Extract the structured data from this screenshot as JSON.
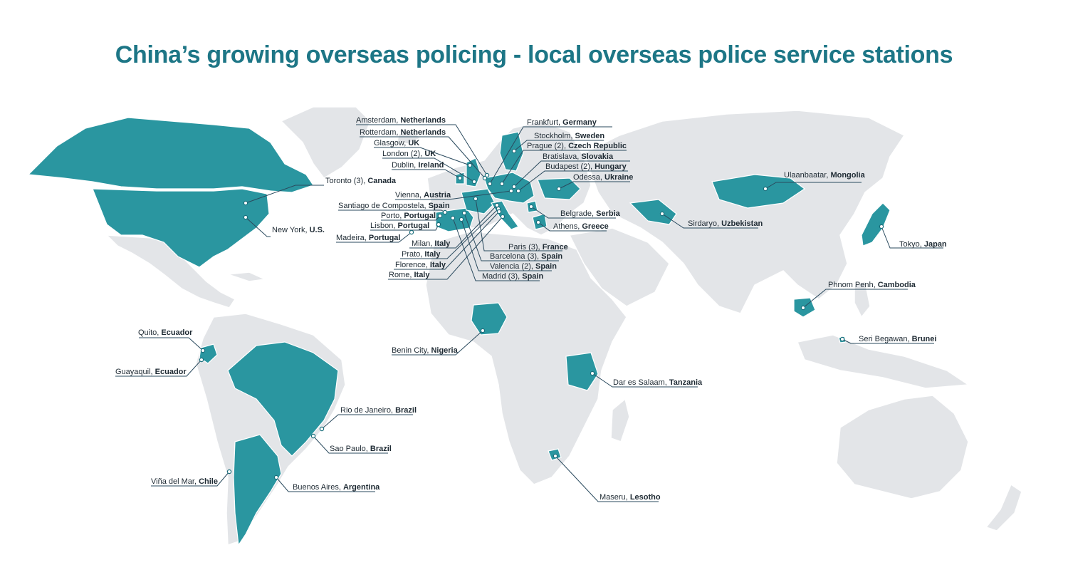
{
  "title": "China’s growing overseas policing - local overseas police service stations",
  "colors": {
    "title": "#1d7686",
    "highlight": "#2a96a0",
    "land": "#e3e5e8",
    "leader": "#2a4a5e"
  },
  "stations": [
    {
      "city": "Amsterdam,",
      "country": "Netherlands"
    },
    {
      "city": "Rotterdam,",
      "country": "Netherlands"
    },
    {
      "city": "Glasgow,",
      "country": "UK"
    },
    {
      "city": "London (2),",
      "country": "UK"
    },
    {
      "city": "Dublin,",
      "country": "Ireland"
    },
    {
      "city": "Toronto (3),",
      "country": "Canada"
    },
    {
      "city": "Vienna,",
      "country": "Austria"
    },
    {
      "city": "Santiago de Compostela,",
      "country": "Spain"
    },
    {
      "city": "Porto,",
      "country": "Portugal"
    },
    {
      "city": "Lisbon,",
      "country": "Portugal"
    },
    {
      "city": "Madeira,",
      "country": "Portugal"
    },
    {
      "city": "New York,",
      "country": "U.S."
    },
    {
      "city": "Milan,",
      "country": "Italy"
    },
    {
      "city": "Prato,",
      "country": "Italy"
    },
    {
      "city": "Florence,",
      "country": "Italy"
    },
    {
      "city": "Rome,",
      "country": "Italy"
    },
    {
      "city": "Paris (3),",
      "country": "France"
    },
    {
      "city": "Barcelona (3),",
      "country": "Spain"
    },
    {
      "city": "Valencia (2),",
      "country": "Spain"
    },
    {
      "city": "Madrid (3),",
      "country": "Spain"
    },
    {
      "city": "Frankfurt,",
      "country": "Germany"
    },
    {
      "city": "Stockholm,",
      "country": "Sweden"
    },
    {
      "city": "Prague (2),",
      "country": "Czech Republic"
    },
    {
      "city": "Bratislava,",
      "country": "Slovakia"
    },
    {
      "city": "Budapest (2),",
      "country": "Hungary"
    },
    {
      "city": "Odessa,",
      "country": "Ukraine"
    },
    {
      "city": "Belgrade,",
      "country": "Serbia"
    },
    {
      "city": "Athens,",
      "country": "Greece"
    },
    {
      "city": "Ulaanbaatar,",
      "country": "Mongolia"
    },
    {
      "city": "Sirdaryo,",
      "country": "Uzbekistan"
    },
    {
      "city": "Tokyo,",
      "country": "Japan"
    },
    {
      "city": "Phnom Penh,",
      "country": "Cambodia"
    },
    {
      "city": "Seri Begawan,",
      "country": "Brunei"
    },
    {
      "city": "Quito,",
      "country": "Ecuador"
    },
    {
      "city": "Guayaquil,",
      "country": "Ecuador"
    },
    {
      "city": "Benin City,",
      "country": "Nigeria"
    },
    {
      "city": "Dar es Salaam,",
      "country": "Tanzania"
    },
    {
      "city": "Rio de Janeiro,",
      "country": "Brazil"
    },
    {
      "city": "Sao Paulo,",
      "country": "Brazil"
    },
    {
      "city": "Viña del Mar,",
      "country": "Chile"
    },
    {
      "city": "Buenos Aires,",
      "country": "Argentina"
    },
    {
      "city": "Maseru,",
      "country": "Lesotho"
    }
  ]
}
